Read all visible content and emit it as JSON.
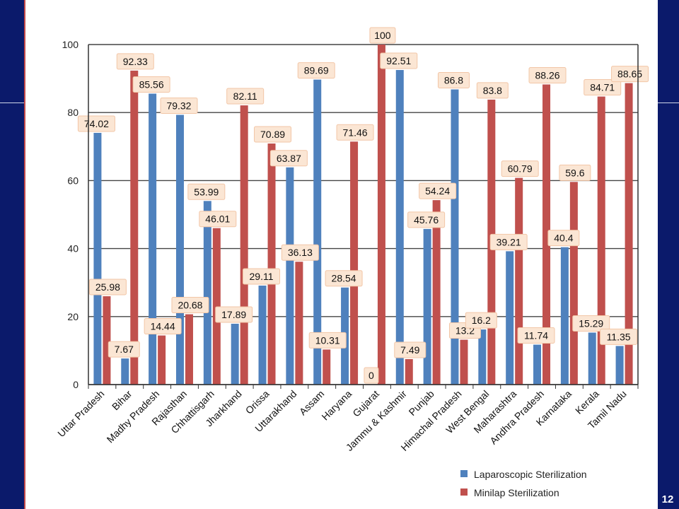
{
  "page": {
    "number": "12"
  },
  "chart_data": {
    "type": "bar",
    "title": "",
    "xlabel": "",
    "ylabel": "",
    "ylim": [
      0,
      100
    ],
    "yticks": [
      0,
      20,
      40,
      60,
      80,
      100
    ],
    "grid": true,
    "legend_position": "bottom-right",
    "categories": [
      "Uttar Pradesh",
      "Bihar",
      "Madhy Pradesh",
      "Rajasthan",
      "Chhattisgarh",
      "Jharkhand",
      "Orissa",
      "Uttarakhand",
      "Assam",
      "Haryana",
      "Gujarat",
      "Jammu & Kashmir",
      "Punjab",
      "Himachal Pradesh",
      "West Bengal",
      "Maharashtra",
      "Andhra Pradesh",
      "Karnataka",
      "Kerala",
      "Tamil Nadu"
    ],
    "series": [
      {
        "name": "Laparoscopic Sterilization",
        "color": "#4f81bd",
        "values": [
          74.02,
          7.67,
          85.56,
          79.32,
          53.99,
          17.89,
          29.11,
          63.87,
          89.69,
          28.54,
          0,
          92.51,
          45.76,
          86.8,
          16.2,
          39.21,
          11.74,
          40.4,
          15.29,
          11.35
        ]
      },
      {
        "name": "Minilap Sterilization",
        "color": "#c0504d",
        "values": [
          25.98,
          92.33,
          14.44,
          20.68,
          46.01,
          82.11,
          70.89,
          36.13,
          10.31,
          71.46,
          100,
          7.49,
          54.24,
          13.2,
          83.8,
          60.79,
          88.26,
          59.6,
          84.71,
          88.65
        ]
      }
    ],
    "labels": {
      "blue": [
        "74.02",
        "7.67",
        "85.56",
        "79.32",
        "53.99",
        "17.89",
        "29.11",
        "63.87",
        "89.69",
        "28.54",
        "0",
        "92.51",
        "45.76",
        "86.8",
        "16.2",
        "39.21",
        "11.74",
        "40.4",
        "15.29",
        "11.35"
      ],
      "red": [
        "25.98",
        "92.33",
        "14.44",
        "20.68",
        "46.01",
        "82.11",
        "70.89",
        "36.13",
        "10.31",
        "71.46",
        "100",
        "7.49",
        "54.24",
        "13.2",
        "83.8",
        "60.79",
        "88.26",
        "59.6",
        "84.71",
        "88.65"
      ]
    }
  }
}
